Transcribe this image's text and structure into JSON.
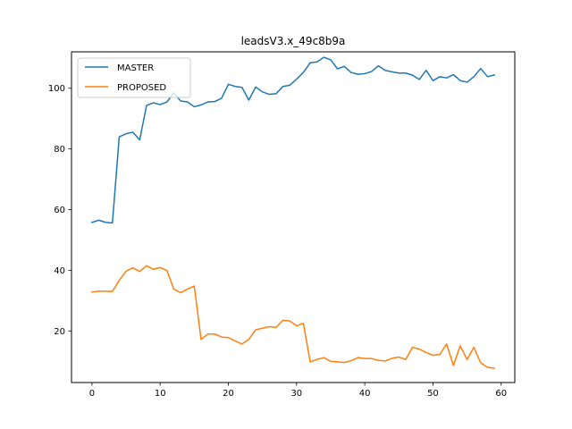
{
  "chart_data": {
    "type": "line",
    "title": "leadsV3.x_49c8b9a",
    "xlabel": "",
    "ylabel": "",
    "xlim": [
      -3,
      62
    ],
    "ylim": [
      3,
      112
    ],
    "x_ticks": [
      0,
      10,
      20,
      30,
      40,
      50,
      60
    ],
    "y_ticks": [
      20,
      40,
      60,
      80,
      100
    ],
    "grid": false,
    "legend_position": "upper-left",
    "x": [
      0,
      1,
      2,
      3,
      4,
      5,
      6,
      7,
      8,
      9,
      10,
      11,
      12,
      13,
      14,
      15,
      16,
      17,
      18,
      19,
      20,
      21,
      22,
      23,
      24,
      25,
      26,
      27,
      28,
      29,
      30,
      31,
      32,
      33,
      34,
      35,
      36,
      37,
      38,
      39,
      40,
      41,
      42,
      43,
      44,
      45,
      46,
      47,
      48,
      49,
      50,
      51,
      52,
      53,
      54,
      55,
      56,
      57,
      58,
      59
    ],
    "series": [
      {
        "name": "MASTER",
        "color": "#1f77b4",
        "values": [
          55.8,
          56.5,
          55.8,
          55.6,
          84.0,
          85.0,
          85.5,
          83.0,
          94.3,
          95.2,
          94.6,
          95.5,
          98.5,
          95.8,
          95.5,
          93.9,
          94.5,
          95.5,
          95.6,
          96.7,
          101.3,
          100.6,
          100.3,
          96.1,
          100.4,
          98.8,
          98.0,
          98.2,
          100.6,
          101.0,
          103.0,
          105.2,
          108.4,
          108.7,
          110.2,
          109.4,
          106.4,
          107.2,
          105.2,
          104.6,
          104.8,
          105.5,
          107.4,
          105.9,
          105.4,
          105.0,
          105.0,
          104.3,
          102.9,
          105.9,
          102.5,
          103.8,
          103.4,
          104.5,
          102.5,
          102.0,
          103.8,
          106.5,
          103.8,
          104.4
        ]
      },
      {
        "name": "PROPOSED",
        "color": "#ff7f0e",
        "values": [
          32.8,
          33.1,
          33.1,
          33.0,
          36.7,
          39.7,
          40.8,
          39.6,
          41.5,
          40.3,
          40.9,
          39.9,
          33.8,
          32.6,
          33.8,
          34.8,
          17.2,
          19.0,
          19.0,
          18.0,
          17.8,
          16.7,
          15.7,
          17.2,
          20.4,
          20.9,
          21.4,
          21.2,
          23.5,
          23.3,
          21.7,
          22.5,
          9.8,
          10.6,
          11.2,
          10.0,
          9.8,
          9.6,
          10.2,
          11.2,
          10.9,
          10.9,
          10.3,
          10.1,
          11.0,
          11.4,
          10.6,
          14.6,
          14.0,
          12.9,
          12.0,
          12.2,
          15.7,
          8.6,
          15.1,
          10.6,
          14.6,
          9.5,
          8.0,
          7.7
        ]
      }
    ]
  }
}
